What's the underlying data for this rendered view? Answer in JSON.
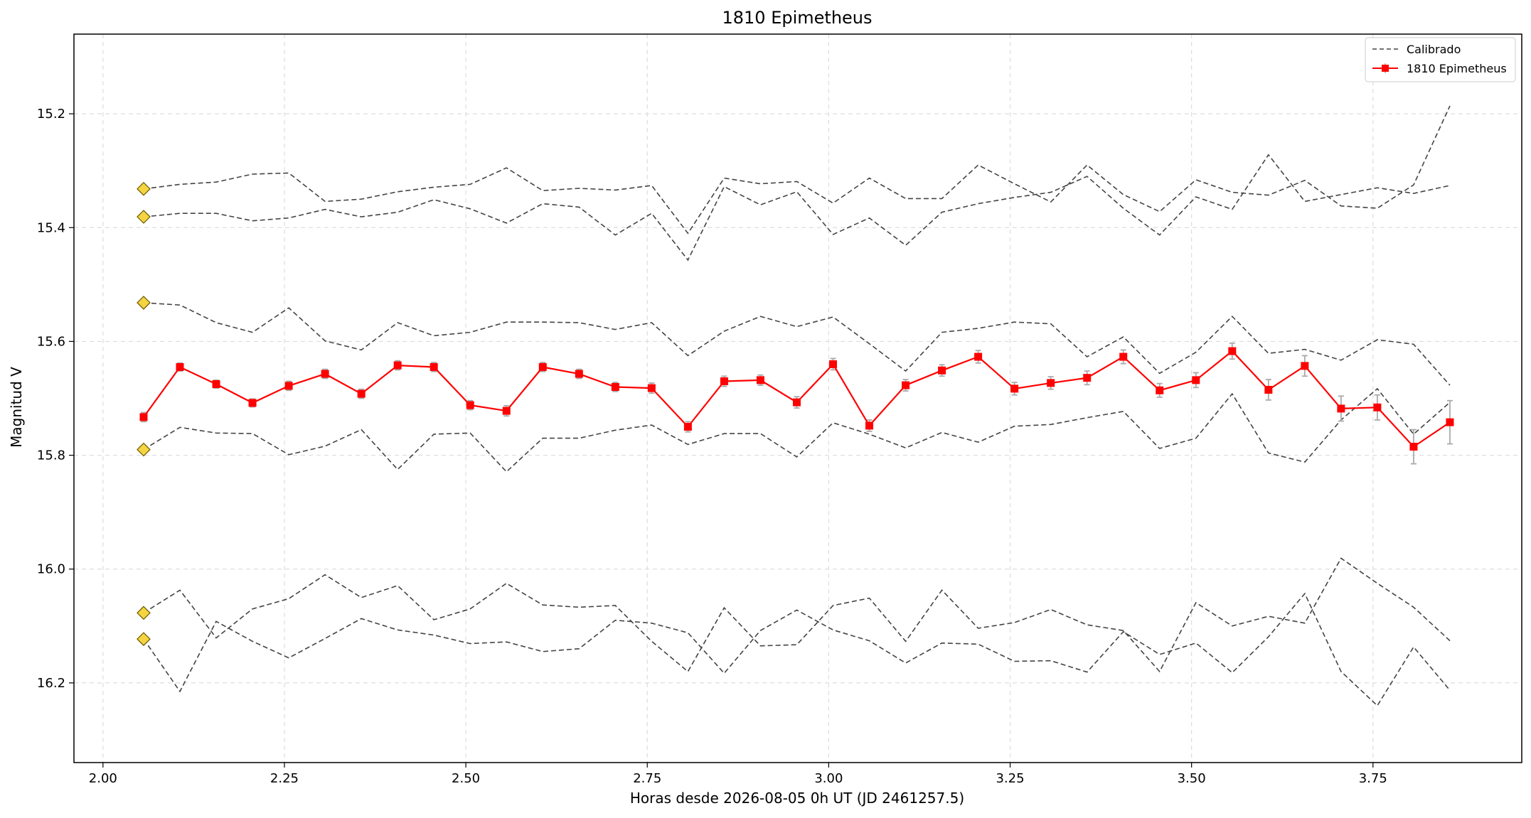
{
  "chart_data": {
    "type": "line",
    "title": "1810 Epimetheus",
    "xlabel": "Horas desde 2026-08-05 0h UT (JD 2461257.5)",
    "ylabel": "Magnitud V",
    "xlim": [
      1.96,
      3.955
    ],
    "ylim": [
      16.34,
      15.06
    ],
    "y_inverted": true,
    "x_ticks": [
      2.0,
      2.25,
      2.5,
      2.75,
      3.0,
      3.25,
      3.5,
      3.75
    ],
    "x_tick_labels": [
      "2.00",
      "2.25",
      "2.50",
      "2.75",
      "3.00",
      "3.25",
      "3.50",
      "3.75"
    ],
    "y_ticks": [
      15.2,
      15.4,
      15.6,
      15.8,
      16.0,
      16.2
    ],
    "y_tick_labels": [
      "15.2",
      "15.4",
      "15.6",
      "15.8",
      "16.0",
      "16.2"
    ],
    "grid": true,
    "legend_position": "top-right",
    "legend": [
      "Calibrado",
      "1810 Epimetheus"
    ],
    "colors": {
      "target": "#ff0000",
      "calibrated": "#444444",
      "marker_fill": "#f5d442",
      "errorbar": "#aaaaaa",
      "grid": "#dddddd"
    },
    "x": [
      2.056,
      2.106,
      2.156,
      2.206,
      2.256,
      2.306,
      2.356,
      2.406,
      2.456,
      2.506,
      2.556,
      2.606,
      2.656,
      2.706,
      2.756,
      2.806,
      2.856,
      2.906,
      2.956,
      3.006,
      3.056,
      3.106,
      3.156,
      3.206,
      3.256,
      3.306,
      3.356,
      3.406,
      3.456,
      3.506,
      3.556,
      3.606,
      3.656,
      3.706,
      3.756,
      3.806,
      3.856
    ],
    "target": {
      "name": "1810 Epimetheus",
      "values": [
        15.733,
        15.645,
        15.675,
        15.708,
        15.678,
        15.657,
        15.692,
        15.642,
        15.645,
        15.712,
        15.722,
        15.645,
        15.657,
        15.68,
        15.682,
        15.75,
        15.67,
        15.668,
        15.707,
        15.64,
        15.748,
        15.677,
        15.651,
        15.627,
        15.683,
        15.673,
        15.664,
        15.627,
        15.686,
        15.668,
        15.617,
        15.685,
        15.643,
        15.718,
        15.716,
        15.785,
        15.742
      ],
      "errors": [
        0.008,
        0.007,
        0.007,
        0.007,
        0.008,
        0.008,
        0.008,
        0.008,
        0.008,
        0.008,
        0.009,
        0.008,
        0.008,
        0.008,
        0.009,
        0.009,
        0.009,
        0.009,
        0.01,
        0.01,
        0.01,
        0.01,
        0.01,
        0.011,
        0.011,
        0.011,
        0.012,
        0.012,
        0.012,
        0.013,
        0.014,
        0.018,
        0.018,
        0.022,
        0.022,
        0.03,
        0.038
      ]
    },
    "calibrated": [
      {
        "values": [
          15.332,
          15.324,
          15.32,
          15.306,
          15.304,
          15.354,
          15.35,
          15.337,
          15.329,
          15.324,
          15.295,
          15.335,
          15.331,
          15.334,
          15.326,
          15.41,
          15.313,
          15.323,
          15.319,
          15.357,
          15.313,
          15.349,
          15.349,
          15.29,
          15.323,
          15.355,
          15.29,
          15.342,
          15.372,
          15.316,
          15.338,
          15.343,
          15.317,
          15.362,
          15.366,
          15.325,
          15.186
        ]
      },
      {
        "values": [
          15.381,
          15.375,
          15.375,
          15.388,
          15.383,
          15.368,
          15.381,
          15.373,
          15.351,
          15.367,
          15.392,
          15.358,
          15.364,
          15.413,
          15.375,
          15.457,
          15.328,
          15.36,
          15.337,
          15.412,
          15.383,
          15.431,
          15.373,
          15.358,
          15.347,
          15.338,
          15.31,
          15.366,
          15.413,
          15.346,
          15.368,
          15.272,
          15.354,
          15.342,
          15.33,
          15.34,
          15.326
        ]
      },
      {
        "values": [
          15.532,
          15.536,
          15.567,
          15.584,
          15.541,
          15.599,
          15.615,
          15.567,
          15.59,
          15.584,
          15.566,
          15.566,
          15.567,
          15.579,
          15.567,
          15.625,
          15.582,
          15.556,
          15.574,
          15.557,
          15.604,
          15.652,
          15.584,
          15.577,
          15.566,
          15.569,
          15.627,
          15.592,
          15.656,
          15.619,
          15.556,
          15.621,
          15.614,
          15.633,
          15.597,
          15.605,
          15.677
        ]
      },
      {
        "values": [
          15.79,
          15.751,
          15.761,
          15.762,
          15.799,
          15.784,
          15.755,
          15.825,
          15.763,
          15.761,
          15.829,
          15.77,
          15.77,
          15.756,
          15.747,
          15.781,
          15.762,
          15.762,
          15.803,
          15.743,
          15.763,
          15.787,
          15.76,
          15.777,
          15.749,
          15.746,
          15.734,
          15.723,
          15.788,
          15.77,
          15.692,
          15.796,
          15.812,
          15.738,
          15.683,
          15.763,
          15.707
        ]
      },
      {
        "values": [
          16.077,
          16.037,
          16.121,
          16.07,
          16.052,
          16.01,
          16.05,
          16.029,
          16.089,
          16.07,
          16.025,
          16.063,
          16.067,
          16.064,
          16.127,
          16.18,
          16.068,
          16.135,
          16.133,
          16.064,
          16.051,
          16.127,
          16.037,
          16.104,
          16.094,
          16.071,
          16.098,
          16.108,
          16.18,
          16.059,
          16.1,
          16.083,
          16.095,
          15.981,
          16.025,
          16.067,
          16.126
        ]
      },
      {
        "values": [
          16.123,
          16.215,
          16.092,
          16.127,
          16.156,
          16.122,
          16.087,
          16.107,
          16.116,
          16.131,
          16.128,
          16.145,
          16.14,
          16.09,
          16.095,
          16.112,
          16.183,
          16.108,
          16.072,
          16.107,
          16.126,
          16.165,
          16.13,
          16.132,
          16.162,
          16.161,
          16.181,
          16.11,
          16.15,
          16.13,
          16.182,
          16.119,
          16.043,
          16.18,
          16.24,
          16.137,
          16.213
        ]
      }
    ]
  }
}
